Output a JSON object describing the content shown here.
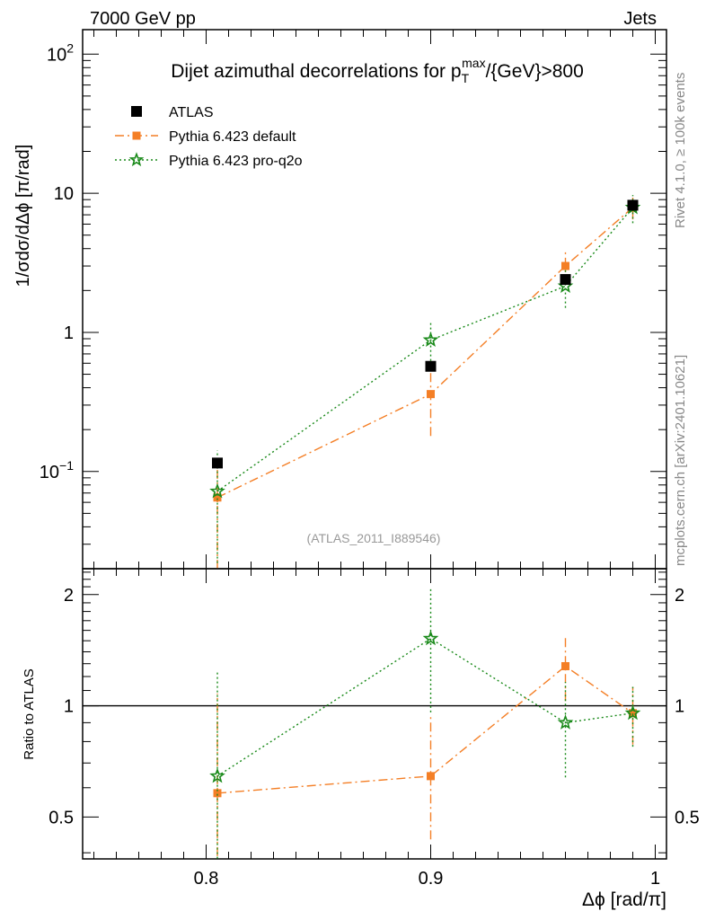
{
  "header": {
    "energy_label": "7000 GeV pp",
    "category_label": "Jets"
  },
  "side_labels": {
    "rivet": "Rivet 4.1.0, ≥ 100k events",
    "mcplots": "mcplots.cern.ch [arXiv:2401.10621]"
  },
  "chart_data": [
    {
      "type": "line",
      "panel": "main",
      "title_prefix": "Dijet azimuthal decorrelations for p",
      "title_sup": "max",
      "title_sub": "T",
      "title_suffix": "/{GeV}>800",
      "ylabel": "1/σdσ/dΔϕ [π/rad]",
      "yscale": "log",
      "ylim": [
        0.02,
        150
      ],
      "xlim": [
        0.745,
        1.005
      ],
      "y_ticks": [
        {
          "value": 100,
          "base": "10",
          "exp": "2"
        },
        {
          "value": 10,
          "base": "10",
          "exp": ""
        },
        {
          "value": 1,
          "base": "1",
          "exp": ""
        },
        {
          "value": 0.1,
          "base": "10",
          "exp": "−1"
        }
      ],
      "legend_position": "top-left",
      "analysis_id": "(ATLAS_2011_I889546)",
      "series": [
        {
          "name": "ATLAS",
          "color": "#000000",
          "marker": "square",
          "line": "none",
          "x": [
            0.805,
            0.9,
            0.96,
            0.99
          ],
          "y": [
            0.115,
            0.57,
            2.4,
            8.2
          ],
          "err_lo": [
            0.01,
            0.04,
            0.15,
            0.5
          ],
          "err_hi": [
            0.01,
            0.04,
            0.15,
            0.5
          ]
        },
        {
          "name": "Pythia 6.423 default",
          "color": "#f47f26",
          "marker": "square",
          "line": "dashdot",
          "x": [
            0.805,
            0.9,
            0.96,
            0.99
          ],
          "y": [
            0.065,
            0.36,
            3.0,
            7.9
          ],
          "err_lo": [
            0.045,
            0.18,
            0.8,
            1.4
          ],
          "err_hi": [
            0.06,
            0.18,
            0.8,
            1.4
          ]
        },
        {
          "name": "Pythia 6.423 pro-q2o",
          "color": "#1a8a1a",
          "marker": "star",
          "line": "dotted",
          "x": [
            0.805,
            0.9,
            0.96,
            0.99
          ],
          "y": [
            0.072,
            0.88,
            2.15,
            7.9
          ],
          "err_lo": [
            0.05,
            0.3,
            0.65,
            1.8
          ],
          "err_hi": [
            0.07,
            0.3,
            0.65,
            1.8
          ]
        }
      ]
    },
    {
      "type": "line",
      "panel": "ratio",
      "ylabel": "Ratio to ATLAS",
      "xlabel": "Δϕ [rad/π]",
      "yscale": "log",
      "ylim": [
        0.385,
        2.35
      ],
      "xlim": [
        0.745,
        1.005
      ],
      "y_ticks": [
        {
          "value": 2,
          "label": "2"
        },
        {
          "value": 1,
          "label": "1"
        },
        {
          "value": 0.5,
          "label": "0.5"
        }
      ],
      "x_ticks": [
        {
          "value": 0.8,
          "label": "0.8"
        },
        {
          "value": 0.9,
          "label": "0.9"
        },
        {
          "value": 1.0,
          "label": "1"
        }
      ],
      "reference_line": 1,
      "series": [
        {
          "name": "Pythia 6.423 default",
          "color": "#f47f26",
          "marker": "square",
          "line": "dashdot",
          "x": [
            0.805,
            0.9,
            0.96,
            0.99
          ],
          "y": [
            0.58,
            0.645,
            1.28,
            0.955
          ],
          "err_lo": [
            0.3,
            0.21,
            0.25,
            0.17
          ],
          "err_hi": [
            0.5,
            0.29,
            0.25,
            0.17
          ]
        },
        {
          "name": "Pythia 6.423 pro-q2o",
          "color": "#1a8a1a",
          "marker": "star",
          "line": "dotted",
          "x": [
            0.805,
            0.9,
            0.96,
            0.99
          ],
          "y": [
            0.645,
            1.52,
            0.9,
            0.955
          ],
          "err_lo": [
            0.3,
            0.56,
            0.26,
            0.18
          ],
          "err_hi": [
            0.6,
            0.56,
            0.26,
            0.17
          ]
        }
      ]
    }
  ]
}
